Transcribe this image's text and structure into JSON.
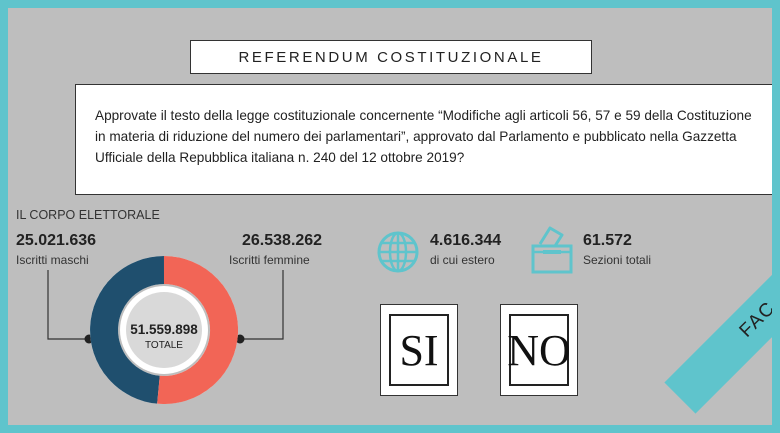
{
  "title": "REFERENDUM COSTITUZIONALE",
  "question": {
    "line1": "Approvate il testo della legge costituzionale concernente “Modifiche agli articoli 56, 57 e 59 della Costituzione",
    "line2": "in materia di riduzione del numero dei parlamentari”, approvato dal Parlamento e pubblicato nella Gazzetta",
    "line3": "Ufficiale della Repubblica italiana n. 240 del 12 ottobre 2019?"
  },
  "electorate": {
    "section_title": "IL CORPO ELETTORALE",
    "male_value": "25.021.636",
    "male_label": "Iscritti maschi",
    "female_value": "26.538.262",
    "female_label": "Iscritti femmine",
    "total_value": "51.559.898",
    "total_label": "TOTALE",
    "male_share": 0.4853,
    "female_share": 0.5147,
    "male_color": "#1f4f6e",
    "female_color": "#f26556"
  },
  "abroad": {
    "value": "4.616.344",
    "label": "di cui estero",
    "icon": "globe-icon"
  },
  "sections": {
    "value": "61.572",
    "label": "Sezioni totali",
    "icon": "ballot-box-icon"
  },
  "ballot": {
    "yes": "SI",
    "no": "NO"
  },
  "watermark": "FAC-SIMILE",
  "colors": {
    "frame": "#5fc4cc",
    "panel": "#bebebe",
    "icon": "#5fc4cc"
  }
}
